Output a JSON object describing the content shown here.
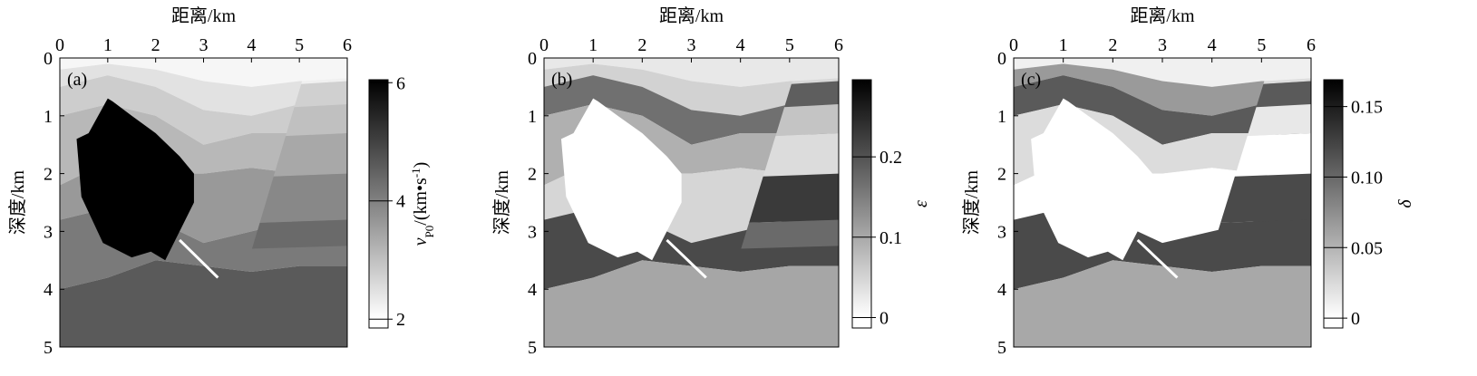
{
  "chart_data": [
    {
      "type": "heatmap",
      "panel_label": "(a)",
      "xlabel": "距离/km",
      "ylabel": "深度/km",
      "xlim": [
        0,
        6
      ],
      "ylim": [
        5,
        0
      ],
      "xticks": [
        0,
        1,
        2,
        3,
        4,
        5,
        6
      ],
      "yticks": [
        0,
        1,
        2,
        3,
        4,
        5
      ],
      "colorbar": {
        "clim": [
          1.85,
          6.05
        ],
        "ticks": [
          2,
          4,
          6
        ],
        "label": {
          "main": "v",
          "sub": "P0",
          "after": "/(km•s",
          "sup": "-1",
          "end": ")"
        }
      }
    },
    {
      "type": "heatmap",
      "panel_label": "(b)",
      "xlabel": "距离/km",
      "ylabel": "深度/km",
      "xlim": [
        0,
        6
      ],
      "ylim": [
        5,
        0
      ],
      "xticks": [
        0,
        1,
        2,
        3,
        4,
        5,
        6
      ],
      "yticks": [
        0,
        1,
        2,
        3,
        4,
        5
      ],
      "colorbar": {
        "clim": [
          -0.013,
          0.296
        ],
        "ticks": [
          0,
          0.1,
          0.2
        ],
        "label": {
          "main": "ε"
        }
      }
    },
    {
      "type": "heatmap",
      "panel_label": "(c)",
      "xlabel": "距离/km",
      "ylabel": "深度/km",
      "xlim": [
        0,
        6
      ],
      "ylim": [
        5,
        0
      ],
      "xticks": [
        0,
        1,
        2,
        3,
        4,
        5,
        6
      ],
      "yticks": [
        0,
        1,
        2,
        3,
        4,
        5
      ],
      "colorbar": {
        "clim": [
          -0.007,
          0.169
        ],
        "ticks": [
          0,
          0.05,
          {
            "value": 0.1,
            "label": "0.10"
          },
          0.15
        ],
        "label": {
          "main": "δ"
        }
      }
    }
  ]
}
